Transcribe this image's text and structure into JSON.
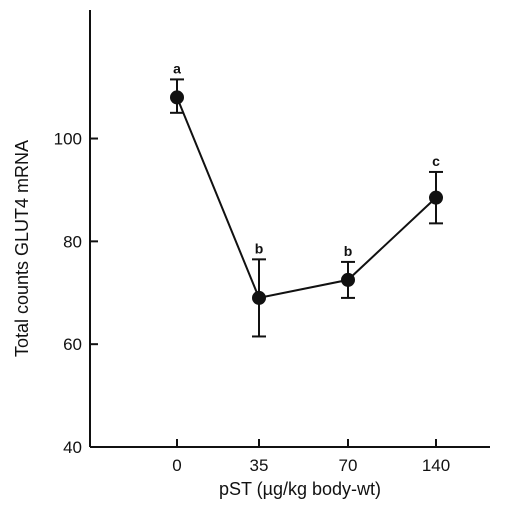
{
  "chart_data": {
    "type": "line",
    "title": "",
    "xlabel": "pST (µg/kg body-wt)",
    "ylabel": "Total counts GLUT4 mRNA",
    "categories": [
      "0",
      "35",
      "70",
      "140"
    ],
    "series": [
      {
        "values": [
          108,
          69,
          72.5,
          88.5
        ],
        "error_upper": [
          111.5,
          76.5,
          76,
          93.5
        ],
        "error_lower": [
          105,
          61.5,
          69,
          83.5
        ],
        "significance_letters": [
          "a",
          "b",
          "b",
          "c"
        ]
      }
    ],
    "yticks": [
      40,
      60,
      80,
      100
    ],
    "ylim": [
      40,
      125
    ],
    "grid": false,
    "legend": "none"
  }
}
